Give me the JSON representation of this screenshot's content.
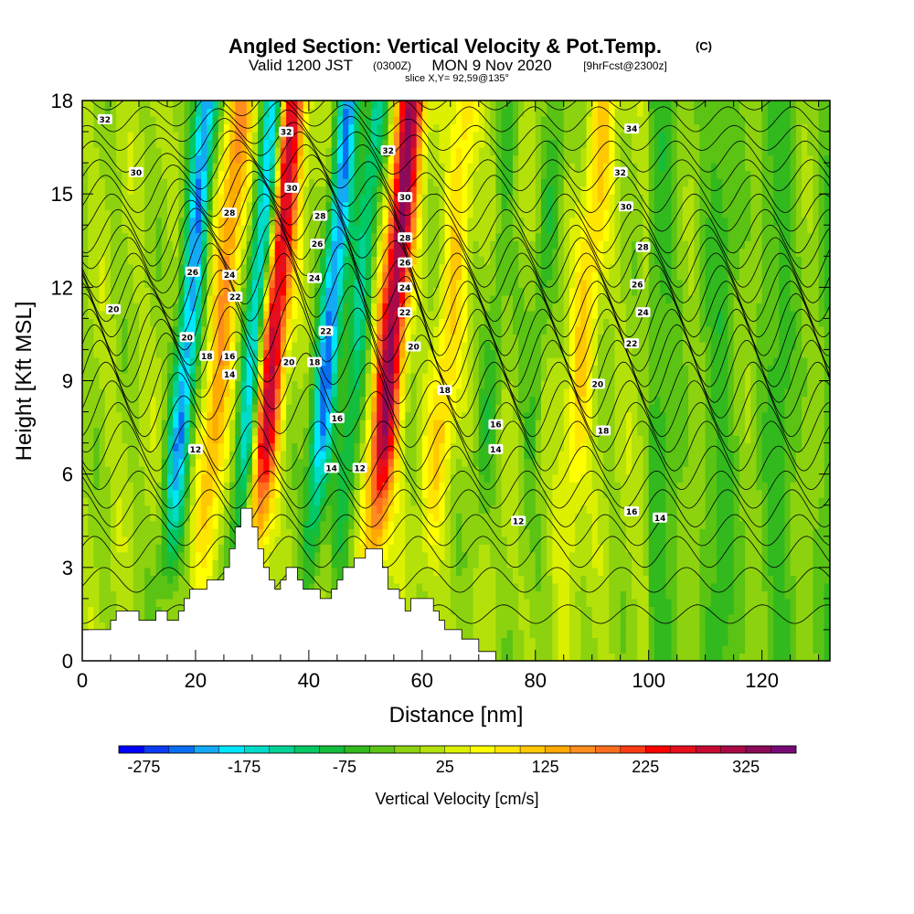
{
  "chart_data": {
    "type": "heatmap",
    "title": "Angled Section: Vertical Velocity & Pot.Temp.",
    "title_unit": "(C)",
    "subtitle": {
      "valid_prefix": "Valid 1200 JST",
      "utc": "(0300Z)",
      "date": "MON 9 Nov 2020",
      "forecast": "[9hrFcst@2300z]",
      "slice": "slice X,Y= 92,59@135°"
    },
    "xlabel": "Distance [nm]",
    "ylabel": "Height [Kft MSL]",
    "xlim": [
      0,
      132
    ],
    "ylim": [
      0,
      18
    ],
    "x_ticks": [
      "0",
      "20",
      "40",
      "60",
      "80",
      "100",
      "120"
    ],
    "y_ticks": [
      "0",
      "3",
      "6",
      "9",
      "12",
      "15",
      "18"
    ],
    "colorbar": {
      "label": "Vertical Velocity [cm/s]",
      "min": -300,
      "max": 375,
      "step": 25,
      "tick_labels": [
        "-275",
        "-175",
        "-75",
        "25",
        "125",
        "225",
        "325"
      ],
      "colors": [
        "#0000ff",
        "#0a3cf5",
        "#0a6ef5",
        "#14aaf5",
        "#00e6ff",
        "#00dcc8",
        "#00d296",
        "#00c864",
        "#14be3c",
        "#32b91e",
        "#5ac314",
        "#8cd20f",
        "#b4e10a",
        "#dcf000",
        "#ffff00",
        "#ffe600",
        "#ffc800",
        "#ffaa00",
        "#ff8c1e",
        "#ff6e1e",
        "#ff3c14",
        "#ff0000",
        "#e60f1e",
        "#c80a32",
        "#aa0a46",
        "#8c0a5a",
        "#780a78"
      ]
    },
    "updrafts": [
      {
        "x": 24,
        "peak": 150
      },
      {
        "x": 33,
        "peak": 300
      },
      {
        "x": 54,
        "peak": 325
      },
      {
        "x": 64,
        "peak": 100
      },
      {
        "x": 88,
        "peak": 100
      }
    ],
    "downdrafts": [
      {
        "x": 18,
        "peak": -225
      },
      {
        "x": 30,
        "peak": -225
      },
      {
        "x": 43,
        "peak": -225
      },
      {
        "x": 48,
        "peak": -125
      },
      {
        "x": 72,
        "peak": -50
      },
      {
        "x": 80,
        "peak": -50
      }
    ],
    "terrain": [
      [
        0,
        1
      ],
      [
        5,
        1
      ],
      [
        5,
        1.3
      ],
      [
        6,
        1.3
      ],
      [
        6,
        1.6
      ],
      [
        10,
        1.6
      ],
      [
        10,
        1.3
      ],
      [
        13,
        1.3
      ],
      [
        13,
        1.6
      ],
      [
        15,
        1.6
      ],
      [
        15,
        1.3
      ],
      [
        17,
        1.3
      ],
      [
        17,
        1.6
      ],
      [
        18,
        1.6
      ],
      [
        18,
        2
      ],
      [
        19,
        2
      ],
      [
        19,
        2.3
      ],
      [
        22,
        2.3
      ],
      [
        22,
        2.6
      ],
      [
        25,
        2.6
      ],
      [
        25,
        3
      ],
      [
        26,
        3
      ],
      [
        26,
        3.6
      ],
      [
        27,
        3.6
      ],
      [
        27,
        4.3
      ],
      [
        28,
        4.3
      ],
      [
        28,
        4.9
      ],
      [
        30,
        4.9
      ],
      [
        30,
        4.3
      ],
      [
        31,
        4.3
      ],
      [
        31,
        3.6
      ],
      [
        32,
        3.6
      ],
      [
        32,
        3
      ],
      [
        33,
        3
      ],
      [
        33,
        2.6
      ],
      [
        34,
        2.6
      ],
      [
        34,
        2.3
      ],
      [
        35,
        2.3
      ],
      [
        35,
        2.6
      ],
      [
        36,
        2.6
      ],
      [
        36,
        3
      ],
      [
        38,
        3
      ],
      [
        38,
        2.6
      ],
      [
        39,
        2.6
      ],
      [
        39,
        2.3
      ],
      [
        42,
        2.3
      ],
      [
        42,
        2
      ],
      [
        44,
        2
      ],
      [
        44,
        2.3
      ],
      [
        45,
        2.3
      ],
      [
        45,
        2.6
      ],
      [
        46,
        2.6
      ],
      [
        46,
        3
      ],
      [
        48,
        3
      ],
      [
        48,
        3.3
      ],
      [
        50,
        3.3
      ],
      [
        50,
        3.6
      ],
      [
        53,
        3.6
      ],
      [
        53,
        3
      ],
      [
        54,
        3
      ],
      [
        54,
        2.3
      ],
      [
        56,
        2.3
      ],
      [
        56,
        2
      ],
      [
        57,
        2
      ],
      [
        57,
        1.6
      ],
      [
        58,
        1.6
      ],
      [
        58,
        2
      ],
      [
        62,
        2
      ],
      [
        62,
        1.6
      ],
      [
        63,
        1.6
      ],
      [
        63,
        1.3
      ],
      [
        64,
        1.3
      ],
      [
        64,
        1
      ],
      [
        67,
        1
      ],
      [
        67,
        0.7
      ],
      [
        70,
        0.7
      ],
      [
        70,
        0.3
      ],
      [
        73,
        0.3
      ],
      [
        73,
        0
      ],
      [
        0,
        0
      ]
    ],
    "isentropes": [
      {
        "base": 1.5,
        "bg": 0,
        "wavy": 0.3,
        "values": []
      },
      {
        "base": 2.6,
        "bg": 0,
        "wavy": 0.4,
        "values": []
      },
      {
        "base": 3.5,
        "bg": 0,
        "wavy": 0.5,
        "values": []
      },
      {
        "base": 4.2,
        "bg": 0,
        "wavy": 0.5,
        "values": []
      },
      {
        "base": 4.9,
        "bg": 0,
        "wavy": 0.6,
        "values": []
      },
      {
        "base": 5.5,
        "bg": 0,
        "wavy": 0.6,
        "values": [
          "12"
        ]
      },
      {
        "base": 6.2,
        "bg": 0,
        "wavy": 0.7,
        "values": [
          "14"
        ]
      },
      {
        "base": 6.9,
        "bg": 0,
        "wavy": 0.8,
        "values": [
          "14"
        ]
      },
      {
        "base": 7.5,
        "bg": 0.6,
        "wavy": 0.8,
        "values": [
          "16"
        ]
      },
      {
        "base": 8.1,
        "bg": 0.9,
        "wavy": 0.9,
        "values": [
          "16"
        ]
      },
      {
        "base": 8.7,
        "bg": 1.2,
        "wavy": 0.9,
        "values": [
          "18"
        ]
      },
      {
        "base": 9.3,
        "bg": 1.4,
        "wavy": 1.0,
        "values": [
          "18"
        ]
      },
      {
        "base": 9.8,
        "bg": 1.6,
        "wavy": 1.0,
        "values": [
          "20"
        ]
      },
      {
        "base": 10.3,
        "bg": 1.8,
        "wavy": 1.0,
        "values": [
          "20"
        ]
      },
      {
        "base": 10.8,
        "bg": 1.9,
        "wavy": 1.0,
        "values": [
          "22"
        ]
      },
      {
        "base": 11.3,
        "bg": 2.0,
        "wavy": 0.9,
        "values": [
          "22"
        ]
      },
      {
        "base": 11.8,
        "bg": 2.0,
        "wavy": 0.9,
        "values": [
          "24"
        ]
      },
      {
        "base": 12.3,
        "bg": 2.0,
        "wavy": 0.8,
        "values": [
          "24"
        ]
      },
      {
        "base": 12.8,
        "bg": 2.0,
        "wavy": 0.8,
        "values": [
          "26"
        ]
      },
      {
        "base": 13.3,
        "bg": 1.9,
        "wavy": 0.7,
        "values": [
          "26"
        ]
      },
      {
        "base": 13.8,
        "bg": 1.8,
        "wavy": 0.7,
        "values": [
          "28"
        ]
      },
      {
        "base": 14.4,
        "bg": 1.6,
        "wavy": 0.6,
        "values": [
          "28"
        ]
      },
      {
        "base": 15.0,
        "bg": 1.4,
        "wavy": 0.6,
        "values": [
          "30"
        ]
      },
      {
        "base": 15.6,
        "bg": 1.2,
        "wavy": 0.5,
        "values": [
          "30"
        ]
      },
      {
        "base": 16.2,
        "bg": 1.0,
        "wavy": 0.5,
        "values": [
          "32"
        ]
      },
      {
        "base": 16.8,
        "bg": 0.8,
        "wavy": 0.4,
        "values": [
          "32"
        ]
      },
      {
        "base": 17.4,
        "bg": 0.6,
        "wavy": 0.4,
        "values": [
          "34"
        ]
      },
      {
        "base": 18.0,
        "bg": 0.4,
        "wavy": 0.3,
        "values": []
      }
    ],
    "contour_labels": [
      {
        "text": "32",
        "x": 4,
        "y": 17.4
      },
      {
        "text": "30",
        "x": 9.5,
        "y": 15.7
      },
      {
        "text": "28",
        "x": 26,
        "y": 14.4
      },
      {
        "text": "26",
        "x": 19.5,
        "y": 12.5
      },
      {
        "text": "24",
        "x": 26,
        "y": 12.4
      },
      {
        "text": "22",
        "x": 27,
        "y": 11.7
      },
      {
        "text": "20",
        "x": 5.5,
        "y": 11.3
      },
      {
        "text": "20",
        "x": 18.5,
        "y": 10.4
      },
      {
        "text": "18",
        "x": 22,
        "y": 9.8
      },
      {
        "text": "16",
        "x": 26,
        "y": 9.8
      },
      {
        "text": "14",
        "x": 26,
        "y": 9.2
      },
      {
        "text": "12",
        "x": 20,
        "y": 6.8
      },
      {
        "text": "32",
        "x": 36,
        "y": 17
      },
      {
        "text": "30",
        "x": 37,
        "y": 15.2
      },
      {
        "text": "28",
        "x": 42,
        "y": 14.3
      },
      {
        "text": "26",
        "x": 41.5,
        "y": 13.4
      },
      {
        "text": "24",
        "x": 41,
        "y": 12.3
      },
      {
        "text": "22",
        "x": 43,
        "y": 10.6
      },
      {
        "text": "20",
        "x": 36.5,
        "y": 9.6
      },
      {
        "text": "18",
        "x": 41,
        "y": 9.6
      },
      {
        "text": "16",
        "x": 45,
        "y": 7.8
      },
      {
        "text": "14",
        "x": 44,
        "y": 6.2
      },
      {
        "text": "12",
        "x": 49,
        "y": 6.2
      },
      {
        "text": "32",
        "x": 54,
        "y": 16.4
      },
      {
        "text": "30",
        "x": 57,
        "y": 14.9
      },
      {
        "text": "28",
        "x": 57,
        "y": 13.6
      },
      {
        "text": "26",
        "x": 57,
        "y": 12.8
      },
      {
        "text": "24",
        "x": 57,
        "y": 12
      },
      {
        "text": "22",
        "x": 57,
        "y": 11.2
      },
      {
        "text": "20",
        "x": 58.5,
        "y": 10.1
      },
      {
        "text": "18",
        "x": 64,
        "y": 8.7
      },
      {
        "text": "16",
        "x": 73,
        "y": 7.6
      },
      {
        "text": "14",
        "x": 73,
        "y": 6.8
      },
      {
        "text": "12",
        "x": 77,
        "y": 4.5
      },
      {
        "text": "34",
        "x": 97,
        "y": 17.1
      },
      {
        "text": "32",
        "x": 95,
        "y": 15.7
      },
      {
        "text": "30",
        "x": 96,
        "y": 14.6
      },
      {
        "text": "28",
        "x": 99,
        "y": 13.3
      },
      {
        "text": "26",
        "x": 98,
        "y": 12.1
      },
      {
        "text": "24",
        "x": 99,
        "y": 11.2
      },
      {
        "text": "22",
        "x": 97,
        "y": 10.2
      },
      {
        "text": "20",
        "x": 91,
        "y": 8.9
      },
      {
        "text": "18",
        "x": 92,
        "y": 7.4
      },
      {
        "text": "16",
        "x": 97,
        "y": 4.8
      },
      {
        "text": "14",
        "x": 102,
        "y": 4.6
      }
    ]
  }
}
